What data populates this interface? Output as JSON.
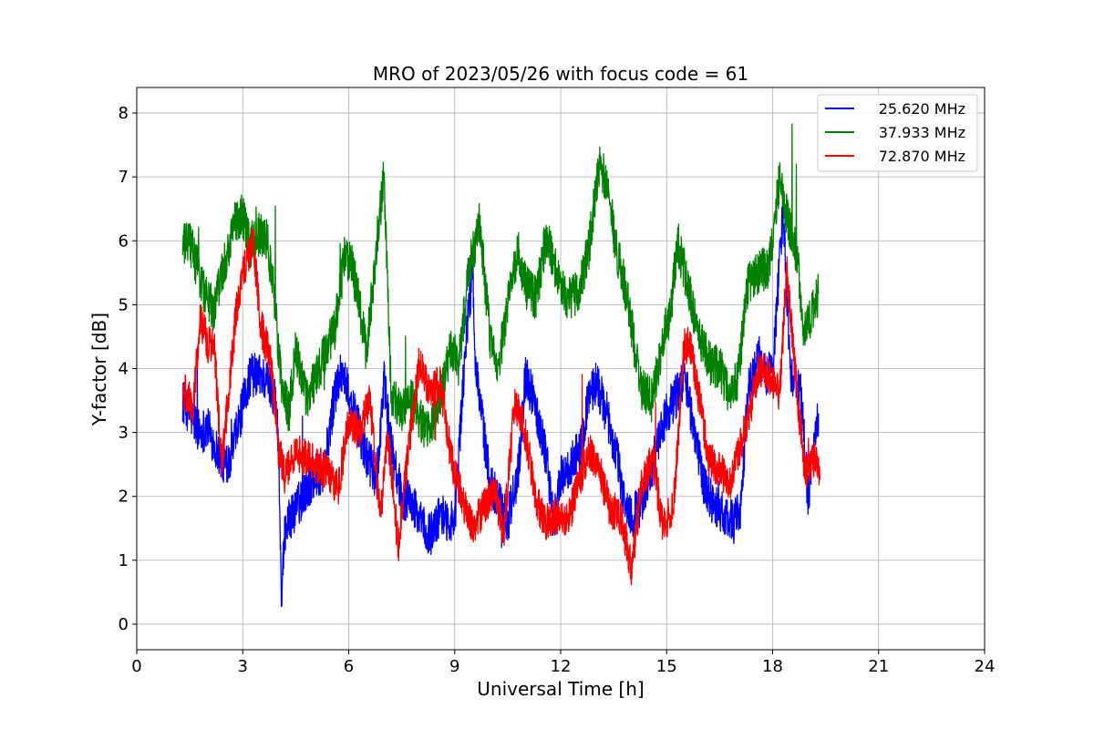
{
  "chart_data": {
    "type": "line",
    "title": "MRO of 2023/05/26 with focus code = 61",
    "xlabel": "Universal Time [h]",
    "ylabel": "Y-factor [dB]",
    "xlim": [
      0,
      24
    ],
    "ylim": [
      -0.4,
      8.4
    ],
    "xticks": [
      0,
      3,
      6,
      9,
      12,
      15,
      18,
      21,
      24
    ],
    "yticks": [
      0,
      1,
      2,
      3,
      4,
      5,
      6,
      7,
      8
    ],
    "grid": true,
    "legend_position": "top-right",
    "series": [
      {
        "name": "25.620 MHz",
        "color": "#0000ff",
        "noise": 0.35,
        "x": [
          1.3,
          1.5,
          1.8,
          2.0,
          2.2,
          2.5,
          2.7,
          3.0,
          3.2,
          3.5,
          3.7,
          3.9,
          4.0,
          4.1,
          4.2,
          4.5,
          4.7,
          5.0,
          5.3,
          5.6,
          5.8,
          6.0,
          6.2,
          6.5,
          6.8,
          7.0,
          7.2,
          7.5,
          7.8,
          8.0,
          8.3,
          8.6,
          9.0,
          9.3,
          9.5,
          9.6,
          9.8,
          10.0,
          10.3,
          10.5,
          10.8,
          11.0,
          11.3,
          11.6,
          11.8,
          12.0,
          12.3,
          12.6,
          12.8,
          13.0,
          13.3,
          13.6,
          13.8,
          14.0,
          14.2,
          14.5,
          14.8,
          15.0,
          15.3,
          15.5,
          15.8,
          16.0,
          16.3,
          16.6,
          16.9,
          17.1,
          17.3,
          17.6,
          17.8,
          18.0,
          18.3,
          18.5,
          18.8,
          19.0,
          19.3
        ],
        "y": [
          3.5,
          3.3,
          3.0,
          3.1,
          2.8,
          2.5,
          2.7,
          3.4,
          3.9,
          3.9,
          3.8,
          3.6,
          3.0,
          0.4,
          1.5,
          1.8,
          2.0,
          2.3,
          2.4,
          3.6,
          4.0,
          3.6,
          3.2,
          2.6,
          2.3,
          3.8,
          2.8,
          2.0,
          1.9,
          1.6,
          1.4,
          1.7,
          1.6,
          4.3,
          5.5,
          4.0,
          3.1,
          2.2,
          1.9,
          1.6,
          2.4,
          3.9,
          3.4,
          2.6,
          1.6,
          2.3,
          2.5,
          2.8,
          3.6,
          3.8,
          3.3,
          2.6,
          1.9,
          1.7,
          1.8,
          2.3,
          2.9,
          3.3,
          3.6,
          3.9,
          3.0,
          2.3,
          1.9,
          1.7,
          1.6,
          1.8,
          3.6,
          4.2,
          3.9,
          4.0,
          6.5,
          4.0,
          3.6,
          2.0,
          3.3
        ]
      },
      {
        "name": "37.933 MHz",
        "color": "#008000",
        "noise": 0.35,
        "x": [
          1.3,
          1.5,
          1.7,
          1.9,
          2.2,
          2.4,
          2.6,
          2.8,
          3.0,
          3.2,
          3.4,
          3.7,
          3.9,
          4.1,
          4.3,
          4.5,
          4.8,
          5.0,
          5.3,
          5.6,
          5.9,
          6.1,
          6.3,
          6.5,
          6.8,
          7.0,
          7.2,
          7.5,
          7.8,
          8.0,
          8.3,
          8.6,
          8.9,
          9.1,
          9.4,
          9.7,
          10.0,
          10.2,
          10.5,
          10.8,
          11.0,
          11.3,
          11.6,
          11.9,
          12.2,
          12.5,
          12.8,
          13.1,
          13.3,
          13.6,
          13.9,
          14.1,
          14.3,
          14.6,
          14.9,
          15.1,
          15.3,
          15.6,
          15.9,
          16.2,
          16.5,
          16.8,
          17.0,
          17.3,
          17.6,
          17.9,
          18.2,
          18.4,
          18.7,
          18.9,
          19.3
        ],
        "y": [
          5.9,
          6.0,
          5.6,
          5.2,
          4.9,
          5.5,
          5.9,
          6.3,
          6.4,
          5.9,
          6.1,
          6.0,
          5.1,
          3.7,
          3.3,
          4.3,
          3.5,
          3.8,
          4.2,
          4.6,
          5.8,
          5.6,
          5.0,
          4.2,
          6.0,
          7.0,
          3.6,
          3.3,
          3.5,
          3.2,
          3.0,
          3.5,
          4.4,
          4.0,
          5.5,
          6.3,
          4.5,
          3.9,
          5.0,
          5.8,
          5.3,
          5.1,
          6.1,
          5.5,
          5.1,
          5.2,
          5.9,
          7.2,
          6.9,
          5.8,
          5.1,
          4.3,
          3.7,
          3.5,
          4.5,
          4.8,
          6.0,
          5.3,
          4.5,
          4.1,
          4.0,
          3.6,
          3.8,
          5.3,
          5.5,
          5.6,
          7.0,
          6.4,
          5.7,
          4.5,
          5.2
        ]
      },
      {
        "name": "72.870 MHz",
        "color": "#ff0000",
        "noise": 0.3,
        "x": [
          1.3,
          1.6,
          1.8,
          2.0,
          2.2,
          2.4,
          2.6,
          2.8,
          3.0,
          3.3,
          3.5,
          3.8,
          4.0,
          4.2,
          4.5,
          4.8,
          5.1,
          5.4,
          5.7,
          6.0,
          6.3,
          6.6,
          6.9,
          7.1,
          7.4,
          7.7,
          8.0,
          8.3,
          8.6,
          8.9,
          9.2,
          9.5,
          9.8,
          10.1,
          10.4,
          10.7,
          11.0,
          11.3,
          11.6,
          11.9,
          12.2,
          12.5,
          12.8,
          13.1,
          13.4,
          13.7,
          14.0,
          14.3,
          14.6,
          14.9,
          15.2,
          15.5,
          15.7,
          15.9,
          16.2,
          16.5,
          16.8,
          17.1,
          17.3,
          17.6,
          17.9,
          18.2,
          18.4,
          18.6,
          18.9,
          19.2,
          19.35
        ],
        "y": [
          3.7,
          3.4,
          4.8,
          4.4,
          4.3,
          2.5,
          3.6,
          4.8,
          5.5,
          6.0,
          4.7,
          4.1,
          2.8,
          2.3,
          2.7,
          2.6,
          2.5,
          2.4,
          2.1,
          3.2,
          3.0,
          3.5,
          1.6,
          3.0,
          1.2,
          2.8,
          4.1,
          3.6,
          3.8,
          2.6,
          2.0,
          1.5,
          1.8,
          2.1,
          1.5,
          3.5,
          3.0,
          1.9,
          1.6,
          1.7,
          1.6,
          2.2,
          2.7,
          2.4,
          1.8,
          1.7,
          0.9,
          2.2,
          2.6,
          1.5,
          1.9,
          4.4,
          4.3,
          3.6,
          2.6,
          2.4,
          2.2,
          2.8,
          3.2,
          4.0,
          3.9,
          3.6,
          5.6,
          4.2,
          2.4,
          2.6,
          2.3
        ]
      }
    ]
  }
}
